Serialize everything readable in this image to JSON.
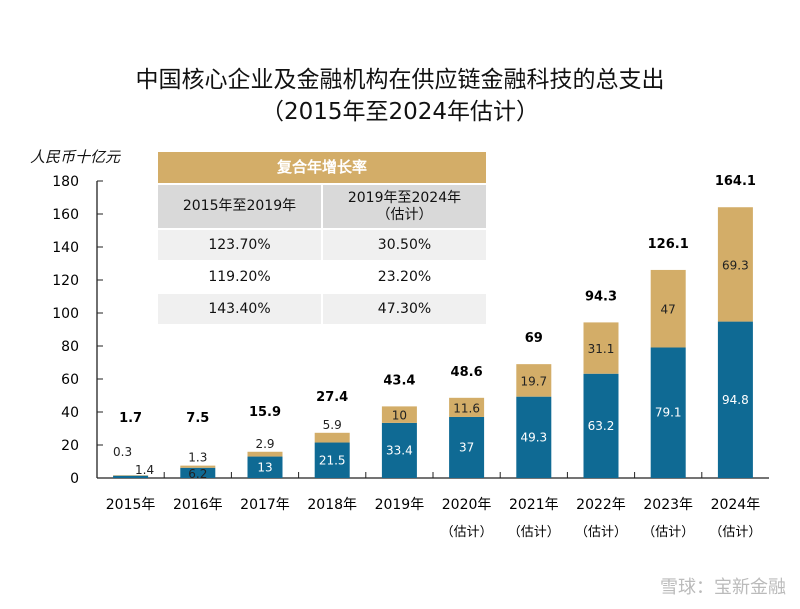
{
  "chart_data": {
    "type": "bar",
    "stacked": true,
    "title": "中国核心企业及金融机构在供应链金融科技的总支出",
    "subtitle": "（2015年至2024年估计）",
    "ylabel": "人民币十亿元",
    "ylim": [
      0,
      180
    ],
    "yticks": [
      0,
      20,
      40,
      60,
      80,
      100,
      120,
      140,
      160,
      180
    ],
    "categories": [
      "2015年",
      "2016年",
      "2017年",
      "2018年",
      "2019年",
      "2020年",
      "2021年",
      "2022年",
      "2023年",
      "2024年"
    ],
    "category_notes": [
      "",
      "",
      "",
      "",
      "",
      "（估计）",
      "（估计）",
      "（估计）",
      "（估计）",
      "（估计）"
    ],
    "series": [
      {
        "values": [
          1.4,
          6.2,
          13,
          21.5,
          33.4,
          37,
          49.3,
          63.2,
          79.1,
          94.8
        ],
        "color": "#0f6a94"
      },
      {
        "values": [
          0.3,
          1.3,
          2.9,
          5.9,
          10,
          11.6,
          19.7,
          31.1,
          47,
          69.3
        ],
        "color": "#d3ad68"
      }
    ],
    "bottom_labels": [
      "1.4",
      "6.2",
      "13",
      "21.5",
      "33.4",
      "37",
      "49.3",
      "63.2",
      "79.1",
      "94.8"
    ],
    "top_labels": [
      "0.3",
      "1.3",
      "2.9",
      "5.9",
      "10",
      "11.6",
      "19.7",
      "31.1",
      "47",
      "69.3"
    ],
    "totals": [
      "1.7",
      "7.5",
      "15.9",
      "27.4",
      "43.4",
      "48.6",
      "69",
      "94.3",
      "126.1",
      "164.1"
    ],
    "totals_values": [
      1.7,
      7.5,
      15.9,
      27.4,
      43.4,
      48.6,
      69,
      94.3,
      126.1,
      164.1
    ],
    "grid": false,
    "table": {
      "header": "复合年增长率",
      "columns": [
        [
          "2015年至2019年"
        ],
        [
          "2019年至2024年",
          "（估计）"
        ]
      ],
      "rows": [
        [
          "123.70%",
          "30.50%"
        ],
        [
          "119.20%",
          "23.20%"
        ],
        [
          "143.40%",
          "47.30%"
        ]
      ]
    }
  },
  "watermark": "雪球：宝新金融"
}
